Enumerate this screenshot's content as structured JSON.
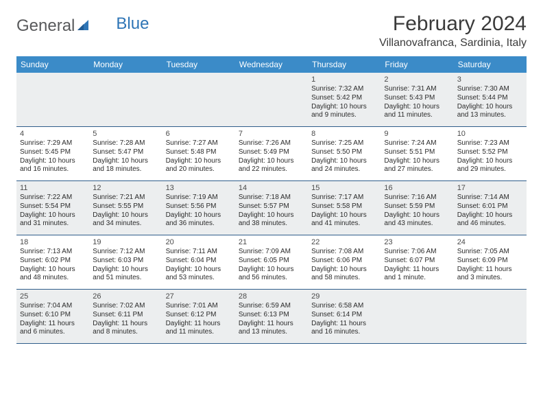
{
  "logo": {
    "text_a": "General",
    "text_b": "Blue"
  },
  "title": "February 2024",
  "location": "Villanovafranca, Sardinia, Italy",
  "colors": {
    "header_bg": "#3b8bc8",
    "header_fg": "#ffffff",
    "week_border": "#2e5d8a",
    "shade_bg": "#eceeef",
    "logo_gray": "#58595b",
    "logo_blue": "#2e75b6"
  },
  "day_names": [
    "Sunday",
    "Monday",
    "Tuesday",
    "Wednesday",
    "Thursday",
    "Friday",
    "Saturday"
  ],
  "weeks": [
    [
      {
        "n": "",
        "sr": "",
        "ss": "",
        "dl": ""
      },
      {
        "n": "",
        "sr": "",
        "ss": "",
        "dl": ""
      },
      {
        "n": "",
        "sr": "",
        "ss": "",
        "dl": ""
      },
      {
        "n": "",
        "sr": "",
        "ss": "",
        "dl": ""
      },
      {
        "n": "1",
        "sr": "Sunrise: 7:32 AM",
        "ss": "Sunset: 5:42 PM",
        "dl": "Daylight: 10 hours and 9 minutes."
      },
      {
        "n": "2",
        "sr": "Sunrise: 7:31 AM",
        "ss": "Sunset: 5:43 PM",
        "dl": "Daylight: 10 hours and 11 minutes."
      },
      {
        "n": "3",
        "sr": "Sunrise: 7:30 AM",
        "ss": "Sunset: 5:44 PM",
        "dl": "Daylight: 10 hours and 13 minutes."
      }
    ],
    [
      {
        "n": "4",
        "sr": "Sunrise: 7:29 AM",
        "ss": "Sunset: 5:45 PM",
        "dl": "Daylight: 10 hours and 16 minutes."
      },
      {
        "n": "5",
        "sr": "Sunrise: 7:28 AM",
        "ss": "Sunset: 5:47 PM",
        "dl": "Daylight: 10 hours and 18 minutes."
      },
      {
        "n": "6",
        "sr": "Sunrise: 7:27 AM",
        "ss": "Sunset: 5:48 PM",
        "dl": "Daylight: 10 hours and 20 minutes."
      },
      {
        "n": "7",
        "sr": "Sunrise: 7:26 AM",
        "ss": "Sunset: 5:49 PM",
        "dl": "Daylight: 10 hours and 22 minutes."
      },
      {
        "n": "8",
        "sr": "Sunrise: 7:25 AM",
        "ss": "Sunset: 5:50 PM",
        "dl": "Daylight: 10 hours and 24 minutes."
      },
      {
        "n": "9",
        "sr": "Sunrise: 7:24 AM",
        "ss": "Sunset: 5:51 PM",
        "dl": "Daylight: 10 hours and 27 minutes."
      },
      {
        "n": "10",
        "sr": "Sunrise: 7:23 AM",
        "ss": "Sunset: 5:52 PM",
        "dl": "Daylight: 10 hours and 29 minutes."
      }
    ],
    [
      {
        "n": "11",
        "sr": "Sunrise: 7:22 AM",
        "ss": "Sunset: 5:54 PM",
        "dl": "Daylight: 10 hours and 31 minutes."
      },
      {
        "n": "12",
        "sr": "Sunrise: 7:21 AM",
        "ss": "Sunset: 5:55 PM",
        "dl": "Daylight: 10 hours and 34 minutes."
      },
      {
        "n": "13",
        "sr": "Sunrise: 7:19 AM",
        "ss": "Sunset: 5:56 PM",
        "dl": "Daylight: 10 hours and 36 minutes."
      },
      {
        "n": "14",
        "sr": "Sunrise: 7:18 AM",
        "ss": "Sunset: 5:57 PM",
        "dl": "Daylight: 10 hours and 38 minutes."
      },
      {
        "n": "15",
        "sr": "Sunrise: 7:17 AM",
        "ss": "Sunset: 5:58 PM",
        "dl": "Daylight: 10 hours and 41 minutes."
      },
      {
        "n": "16",
        "sr": "Sunrise: 7:16 AM",
        "ss": "Sunset: 5:59 PM",
        "dl": "Daylight: 10 hours and 43 minutes."
      },
      {
        "n": "17",
        "sr": "Sunrise: 7:14 AM",
        "ss": "Sunset: 6:01 PM",
        "dl": "Daylight: 10 hours and 46 minutes."
      }
    ],
    [
      {
        "n": "18",
        "sr": "Sunrise: 7:13 AM",
        "ss": "Sunset: 6:02 PM",
        "dl": "Daylight: 10 hours and 48 minutes."
      },
      {
        "n": "19",
        "sr": "Sunrise: 7:12 AM",
        "ss": "Sunset: 6:03 PM",
        "dl": "Daylight: 10 hours and 51 minutes."
      },
      {
        "n": "20",
        "sr": "Sunrise: 7:11 AM",
        "ss": "Sunset: 6:04 PM",
        "dl": "Daylight: 10 hours and 53 minutes."
      },
      {
        "n": "21",
        "sr": "Sunrise: 7:09 AM",
        "ss": "Sunset: 6:05 PM",
        "dl": "Daylight: 10 hours and 56 minutes."
      },
      {
        "n": "22",
        "sr": "Sunrise: 7:08 AM",
        "ss": "Sunset: 6:06 PM",
        "dl": "Daylight: 10 hours and 58 minutes."
      },
      {
        "n": "23",
        "sr": "Sunrise: 7:06 AM",
        "ss": "Sunset: 6:07 PM",
        "dl": "Daylight: 11 hours and 1 minute."
      },
      {
        "n": "24",
        "sr": "Sunrise: 7:05 AM",
        "ss": "Sunset: 6:09 PM",
        "dl": "Daylight: 11 hours and 3 minutes."
      }
    ],
    [
      {
        "n": "25",
        "sr": "Sunrise: 7:04 AM",
        "ss": "Sunset: 6:10 PM",
        "dl": "Daylight: 11 hours and 6 minutes."
      },
      {
        "n": "26",
        "sr": "Sunrise: 7:02 AM",
        "ss": "Sunset: 6:11 PM",
        "dl": "Daylight: 11 hours and 8 minutes."
      },
      {
        "n": "27",
        "sr": "Sunrise: 7:01 AM",
        "ss": "Sunset: 6:12 PM",
        "dl": "Daylight: 11 hours and 11 minutes."
      },
      {
        "n": "28",
        "sr": "Sunrise: 6:59 AM",
        "ss": "Sunset: 6:13 PM",
        "dl": "Daylight: 11 hours and 13 minutes."
      },
      {
        "n": "29",
        "sr": "Sunrise: 6:58 AM",
        "ss": "Sunset: 6:14 PM",
        "dl": "Daylight: 11 hours and 16 minutes."
      },
      {
        "n": "",
        "sr": "",
        "ss": "",
        "dl": ""
      },
      {
        "n": "",
        "sr": "",
        "ss": "",
        "dl": ""
      }
    ]
  ]
}
